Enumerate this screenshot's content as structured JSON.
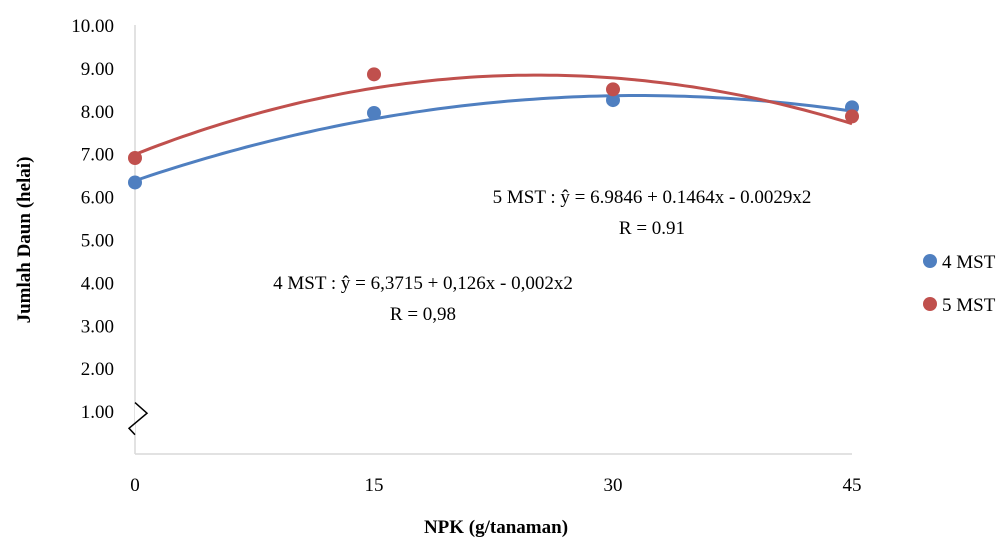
{
  "chart_data": {
    "type": "scatter",
    "title": "",
    "xlabel": "NPK (g/tanaman)",
    "ylabel": "Jumlah Daun (helai)",
    "x": [
      0,
      15,
      30,
      45
    ],
    "x_tick_labels": [
      "0",
      "15",
      "30",
      "45"
    ],
    "y_tick_labels": [
      "1.00",
      "2.00",
      "3.00",
      "4.00",
      "5.00",
      "6.00",
      "7.00",
      "8.00",
      "9.00",
      "10.00"
    ],
    "ylim": [
      0,
      10
    ],
    "axis_break": true,
    "legend_position": "right",
    "series": [
      {
        "name": "4 MST",
        "color": "#4f7fc0",
        "values": [
          6.33,
          7.95,
          8.25,
          8.08
        ],
        "trend": {
          "type": "polynomial",
          "a": 6.3715,
          "b": 0.126,
          "c": -0.002
        }
      },
      {
        "name": "5 MST",
        "color": "#c0504d",
        "values": [
          6.9,
          8.85,
          8.5,
          7.87
        ],
        "trend": {
          "type": "polynomial",
          "a": 6.9846,
          "b": 0.1464,
          "c": -0.0029
        }
      }
    ],
    "annotations": [
      {
        "line1": "5 MST : ŷ = 6.9846 + 0.1464x - 0.0029x2",
        "line2": "R = 0.91"
      },
      {
        "line1": "4 MST : ŷ = 6,3715 + 0,126x - 0,002x2",
        "line2": "R = 0,98"
      }
    ]
  }
}
